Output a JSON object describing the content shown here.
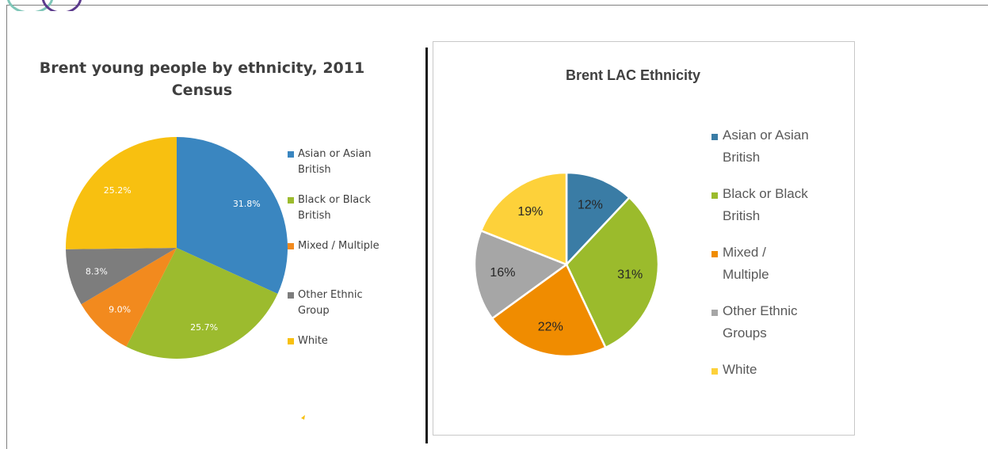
{
  "chart_data": [
    {
      "type": "pie",
      "title": "Brent young people by ethnicity, 2011",
      "subtitle": "Census",
      "categories": [
        "Asian or Asian British",
        "Black or Black British",
        "Mixed / Multiple",
        "Other Ethnic Group",
        "White"
      ],
      "values": [
        31.8,
        25.7,
        9.0,
        8.3,
        25.2
      ],
      "data_labels": [
        "31.8%",
        "25.7%",
        "9.0%",
        "8.3%",
        "25.2%"
      ],
      "colors": [
        "#3a86c0",
        "#9cbb2e",
        "#f28a1e",
        "#7d7d7d",
        "#f8c010"
      ],
      "legend": {
        "position": "right",
        "entries": [
          [
            "Asian or Asian",
            "British"
          ],
          [
            "Black or Black",
            "British"
          ],
          [
            "Mixed / Multiple"
          ],
          [
            "Other Ethnic",
            "Group"
          ],
          [
            "White"
          ]
        ]
      }
    },
    {
      "type": "pie",
      "title": "Brent LAC Ethnicity",
      "categories": [
        "Asian or Asian British",
        "Black or Black British",
        "Mixed / Multiple",
        "Other Ethnic Groups",
        "White"
      ],
      "values": [
        12,
        31,
        22,
        16,
        19
      ],
      "data_labels": [
        "12%",
        "31%",
        "22%",
        "16%",
        "19%"
      ],
      "colors": [
        "#3a7ca5",
        "#9bbb2c",
        "#f08c00",
        "#a6a6a6",
        "#fdd13a"
      ],
      "legend": {
        "position": "right",
        "entries": [
          [
            "Asian or Asian",
            "British"
          ],
          [
            "Black or Black",
            "British"
          ],
          [
            "Mixed /",
            "Multiple"
          ],
          [
            "Other Ethnic",
            "Groups"
          ],
          [
            "White"
          ]
        ]
      }
    }
  ]
}
